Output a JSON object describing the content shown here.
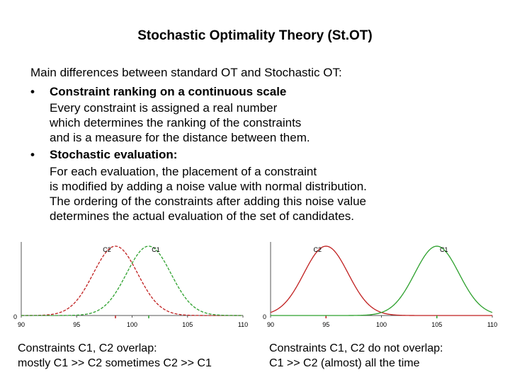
{
  "title": "Stochastic Optimality Theory (St.OT)",
  "intro": "Main differences between standard OT and Stochastic OT:",
  "bullets": [
    {
      "marker": "•",
      "heading": "Constraint ranking on a continuous scale",
      "lines": [
        "Every constraint is assigned a real number",
        "which determines the ranking of the constraints",
        "and is a measure for the distance between them."
      ]
    },
    {
      "marker": "•",
      "heading": "Stochastic evaluation:",
      "lines": [
        "For each evaluation, the placement of a constraint",
        "is modified by adding a noise value with normal distribution.",
        "The ordering of the constraints after adding this noise value",
        "determines the actual evaluation of the set of candidates."
      ]
    }
  ],
  "captions": {
    "left": [
      "Constraints C1, C2 overlap:",
      "mostly C1 >> C2 sometimes C2 >> C1"
    ],
    "right": [
      "Constraints C1, C2 do not overlap:",
      "C1 >> C2 (almost) all the time"
    ]
  },
  "colors": {
    "c1": "#2ca02c",
    "c2": "#c01f1f",
    "axis": "#555555"
  },
  "chart_data": [
    {
      "type": "line",
      "xlim": [
        90,
        110
      ],
      "ylabel_tick": "0",
      "xticks": [
        90,
        95,
        100,
        105,
        110
      ],
      "series": [
        {
          "name": "C2",
          "mean": 98.5,
          "sd": 2,
          "color": "#c01f1f",
          "dashed": true
        },
        {
          "name": "C1",
          "mean": 101.5,
          "sd": 2,
          "color": "#2ca02c",
          "dashed": true
        }
      ]
    },
    {
      "type": "line",
      "xlim": [
        90,
        110
      ],
      "ylabel_tick": "0",
      "xticks": [
        90,
        95,
        100,
        105,
        110
      ],
      "series": [
        {
          "name": "C2",
          "mean": 95,
          "sd": 2,
          "color": "#c01f1f",
          "dashed": false
        },
        {
          "name": "C1",
          "mean": 105,
          "sd": 2,
          "color": "#2ca02c",
          "dashed": false
        }
      ]
    }
  ]
}
